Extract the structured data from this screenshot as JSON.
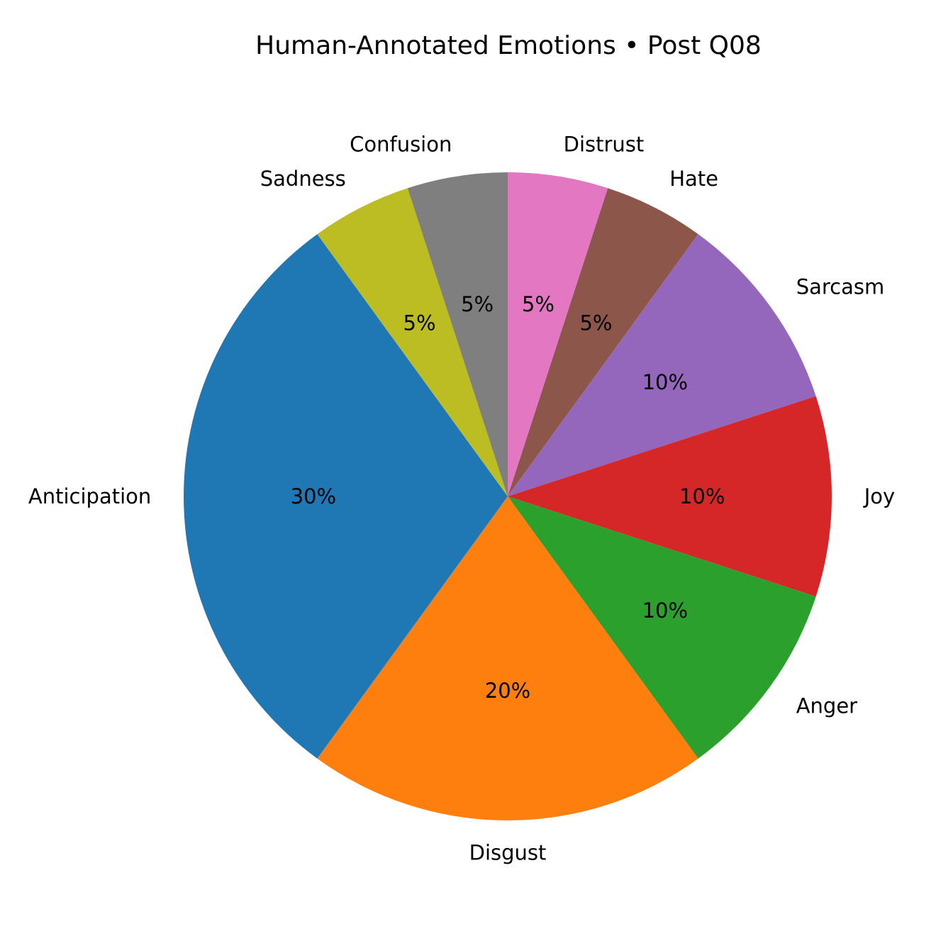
{
  "chart_data": {
    "type": "pie",
    "title": "Human-Annotated Emotions • Post Q08",
    "start_angle_deg": 90,
    "direction": "clockwise",
    "slices": [
      {
        "label": "Distrust",
        "value": 5,
        "pct_label": "5%",
        "color": "#e377c2"
      },
      {
        "label": "Hate",
        "value": 5,
        "pct_label": "5%",
        "color": "#8c564b"
      },
      {
        "label": "Sarcasm",
        "value": 10,
        "pct_label": "10%",
        "color": "#9467bd"
      },
      {
        "label": "Joy",
        "value": 10,
        "pct_label": "10%",
        "color": "#d62728"
      },
      {
        "label": "Anger",
        "value": 10,
        "pct_label": "10%",
        "color": "#2ca02c"
      },
      {
        "label": "Disgust",
        "value": 20,
        "pct_label": "20%",
        "color": "#ff7f0e"
      },
      {
        "label": "Anticipation",
        "value": 30,
        "pct_label": "30%",
        "color": "#1f77b4"
      },
      {
        "label": "Sadness",
        "value": 5,
        "pct_label": "5%",
        "color": "#bcbd22"
      },
      {
        "label": "Confusion",
        "value": 5,
        "pct_label": "5%",
        "color": "#7f7f7f"
      }
    ]
  }
}
